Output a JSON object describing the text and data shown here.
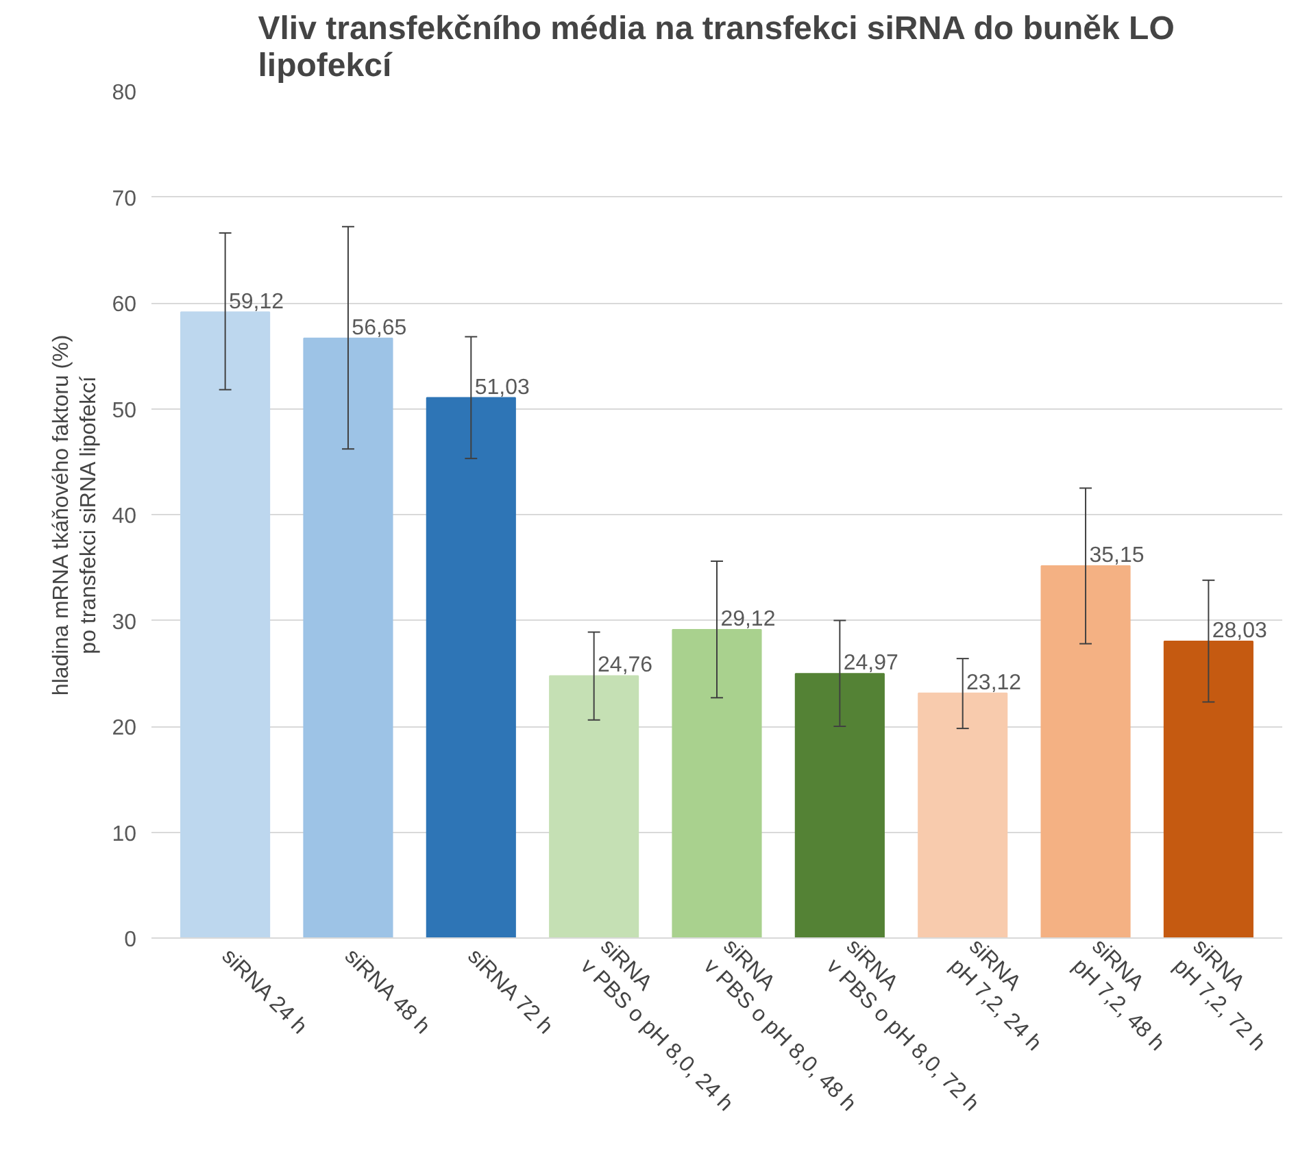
{
  "chart_data": {
    "type": "bar",
    "title": "Vliv transfekčního média na transfekci siRNA do buněk LO lipofekcí",
    "ylabel": "hladina mRNA tkáňového faktoru (%)\npo transfekci siRNA lipofekcí",
    "categories": [
      "siRNA 24 h",
      "siRNA 48 h",
      "siRNA 72 h",
      "siRNA\nv PBS o pH 8,0, 24 h",
      "siRNA\nv PBS o pH 8,0, 48 h",
      "siRNA\nv PBS o pH 8,0, 72 h",
      "siRNA\npH 7,2, 24 h",
      "siRNA\npH 7,2, 48 h",
      "siRNA\npH 7,2, 72 h"
    ],
    "values": [
      59.12,
      56.65,
      51.03,
      24.76,
      29.12,
      24.97,
      23.12,
      35.15,
      28.03
    ],
    "value_labels": [
      "59,12",
      "56,65",
      "51,03",
      "24,76",
      "29,12",
      "24,97",
      "23,12",
      "35,15",
      "28,03"
    ],
    "colors": [
      "#bdd7ee",
      "#9dc3e6",
      "#2e75b6",
      "#c5e0b4",
      "#a9d18e",
      "#548235",
      "#f8cbad",
      "#f4b183",
      "#c55a11"
    ],
    "errors": [
      [
        51.8,
        66.6
      ],
      [
        46.2,
        67.2
      ],
      [
        45.3,
        56.8
      ],
      [
        20.6,
        28.9
      ],
      [
        22.7,
        35.6
      ],
      [
        20.0,
        30.0
      ],
      [
        19.8,
        26.4
      ],
      [
        27.8,
        42.5
      ],
      [
        22.3,
        33.8
      ]
    ],
    "ylim": [
      0,
      80
    ],
    "yticks": [
      0,
      10,
      20,
      30,
      40,
      50,
      60,
      70,
      80
    ],
    "grid": "y"
  }
}
